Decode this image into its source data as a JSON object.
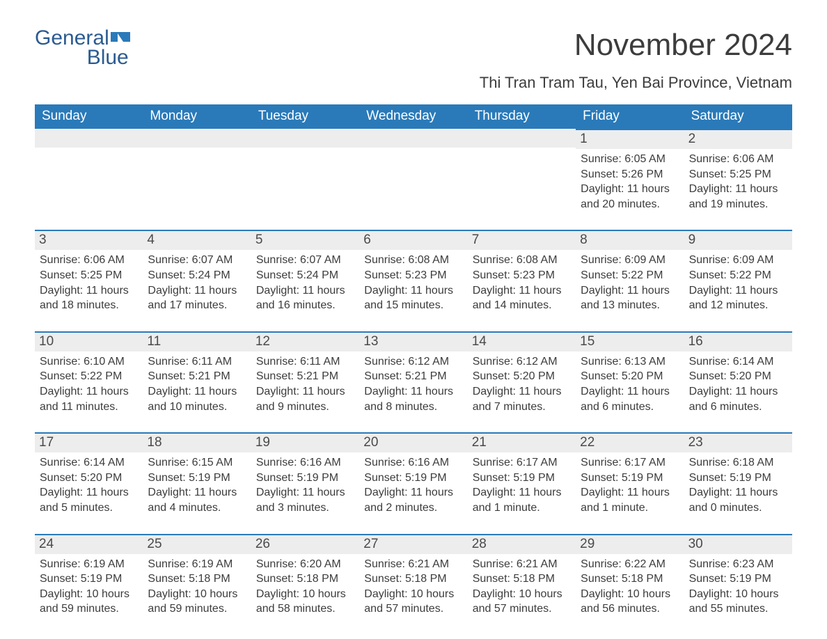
{
  "logo": {
    "text1": "General",
    "text2": "Blue"
  },
  "title": "November 2024",
  "location": "Thi Tran Tram Tau, Yen Bai Province, Vietnam",
  "colors": {
    "header_bg": "#2a7ab9",
    "header_text": "#ffffff",
    "daynum_bg": "#ededed",
    "daynum_border": "#2a7ab9",
    "body_text": "#3c3c3c",
    "logo_color": "#2b5b91",
    "page_bg": "#ffffff"
  },
  "typography": {
    "title_fontsize": 44,
    "location_fontsize": 22,
    "weekday_fontsize": 19,
    "daynum_fontsize": 19,
    "details_fontsize": 16,
    "logo_fontsize": 30
  },
  "weekdays": [
    "Sunday",
    "Monday",
    "Tuesday",
    "Wednesday",
    "Thursday",
    "Friday",
    "Saturday"
  ],
  "weeks": [
    [
      {
        "empty": true
      },
      {
        "empty": true
      },
      {
        "empty": true
      },
      {
        "empty": true
      },
      {
        "empty": true
      },
      {
        "num": "1",
        "sunrise": "Sunrise: 6:05 AM",
        "sunset": "Sunset: 5:26 PM",
        "daylight": "Daylight: 11 hours and 20 minutes."
      },
      {
        "num": "2",
        "sunrise": "Sunrise: 6:06 AM",
        "sunset": "Sunset: 5:25 PM",
        "daylight": "Daylight: 11 hours and 19 minutes."
      }
    ],
    [
      {
        "num": "3",
        "sunrise": "Sunrise: 6:06 AM",
        "sunset": "Sunset: 5:25 PM",
        "daylight": "Daylight: 11 hours and 18 minutes."
      },
      {
        "num": "4",
        "sunrise": "Sunrise: 6:07 AM",
        "sunset": "Sunset: 5:24 PM",
        "daylight": "Daylight: 11 hours and 17 minutes."
      },
      {
        "num": "5",
        "sunrise": "Sunrise: 6:07 AM",
        "sunset": "Sunset: 5:24 PM",
        "daylight": "Daylight: 11 hours and 16 minutes."
      },
      {
        "num": "6",
        "sunrise": "Sunrise: 6:08 AM",
        "sunset": "Sunset: 5:23 PM",
        "daylight": "Daylight: 11 hours and 15 minutes."
      },
      {
        "num": "7",
        "sunrise": "Sunrise: 6:08 AM",
        "sunset": "Sunset: 5:23 PM",
        "daylight": "Daylight: 11 hours and 14 minutes."
      },
      {
        "num": "8",
        "sunrise": "Sunrise: 6:09 AM",
        "sunset": "Sunset: 5:22 PM",
        "daylight": "Daylight: 11 hours and 13 minutes."
      },
      {
        "num": "9",
        "sunrise": "Sunrise: 6:09 AM",
        "sunset": "Sunset: 5:22 PM",
        "daylight": "Daylight: 11 hours and 12 minutes."
      }
    ],
    [
      {
        "num": "10",
        "sunrise": "Sunrise: 6:10 AM",
        "sunset": "Sunset: 5:22 PM",
        "daylight": "Daylight: 11 hours and 11 minutes."
      },
      {
        "num": "11",
        "sunrise": "Sunrise: 6:11 AM",
        "sunset": "Sunset: 5:21 PM",
        "daylight": "Daylight: 11 hours and 10 minutes."
      },
      {
        "num": "12",
        "sunrise": "Sunrise: 6:11 AM",
        "sunset": "Sunset: 5:21 PM",
        "daylight": "Daylight: 11 hours and 9 minutes."
      },
      {
        "num": "13",
        "sunrise": "Sunrise: 6:12 AM",
        "sunset": "Sunset: 5:21 PM",
        "daylight": "Daylight: 11 hours and 8 minutes."
      },
      {
        "num": "14",
        "sunrise": "Sunrise: 6:12 AM",
        "sunset": "Sunset: 5:20 PM",
        "daylight": "Daylight: 11 hours and 7 minutes."
      },
      {
        "num": "15",
        "sunrise": "Sunrise: 6:13 AM",
        "sunset": "Sunset: 5:20 PM",
        "daylight": "Daylight: 11 hours and 6 minutes."
      },
      {
        "num": "16",
        "sunrise": "Sunrise: 6:14 AM",
        "sunset": "Sunset: 5:20 PM",
        "daylight": "Daylight: 11 hours and 6 minutes."
      }
    ],
    [
      {
        "num": "17",
        "sunrise": "Sunrise: 6:14 AM",
        "sunset": "Sunset: 5:20 PM",
        "daylight": "Daylight: 11 hours and 5 minutes."
      },
      {
        "num": "18",
        "sunrise": "Sunrise: 6:15 AM",
        "sunset": "Sunset: 5:19 PM",
        "daylight": "Daylight: 11 hours and 4 minutes."
      },
      {
        "num": "19",
        "sunrise": "Sunrise: 6:16 AM",
        "sunset": "Sunset: 5:19 PM",
        "daylight": "Daylight: 11 hours and 3 minutes."
      },
      {
        "num": "20",
        "sunrise": "Sunrise: 6:16 AM",
        "sunset": "Sunset: 5:19 PM",
        "daylight": "Daylight: 11 hours and 2 minutes."
      },
      {
        "num": "21",
        "sunrise": "Sunrise: 6:17 AM",
        "sunset": "Sunset: 5:19 PM",
        "daylight": "Daylight: 11 hours and 1 minute."
      },
      {
        "num": "22",
        "sunrise": "Sunrise: 6:17 AM",
        "sunset": "Sunset: 5:19 PM",
        "daylight": "Daylight: 11 hours and 1 minute."
      },
      {
        "num": "23",
        "sunrise": "Sunrise: 6:18 AM",
        "sunset": "Sunset: 5:19 PM",
        "daylight": "Daylight: 11 hours and 0 minutes."
      }
    ],
    [
      {
        "num": "24",
        "sunrise": "Sunrise: 6:19 AM",
        "sunset": "Sunset: 5:19 PM",
        "daylight": "Daylight: 10 hours and 59 minutes."
      },
      {
        "num": "25",
        "sunrise": "Sunrise: 6:19 AM",
        "sunset": "Sunset: 5:18 PM",
        "daylight": "Daylight: 10 hours and 59 minutes."
      },
      {
        "num": "26",
        "sunrise": "Sunrise: 6:20 AM",
        "sunset": "Sunset: 5:18 PM",
        "daylight": "Daylight: 10 hours and 58 minutes."
      },
      {
        "num": "27",
        "sunrise": "Sunrise: 6:21 AM",
        "sunset": "Sunset: 5:18 PM",
        "daylight": "Daylight: 10 hours and 57 minutes."
      },
      {
        "num": "28",
        "sunrise": "Sunrise: 6:21 AM",
        "sunset": "Sunset: 5:18 PM",
        "daylight": "Daylight: 10 hours and 57 minutes."
      },
      {
        "num": "29",
        "sunrise": "Sunrise: 6:22 AM",
        "sunset": "Sunset: 5:18 PM",
        "daylight": "Daylight: 10 hours and 56 minutes."
      },
      {
        "num": "30",
        "sunrise": "Sunrise: 6:23 AM",
        "sunset": "Sunset: 5:19 PM",
        "daylight": "Daylight: 10 hours and 55 minutes."
      }
    ]
  ]
}
